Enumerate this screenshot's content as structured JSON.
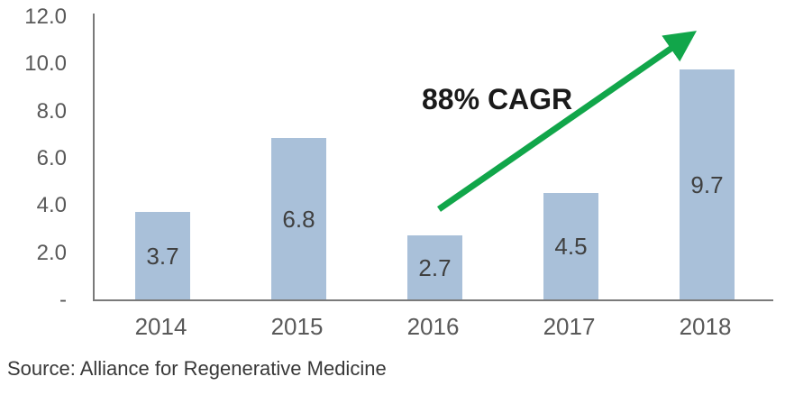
{
  "chart_data": {
    "type": "bar",
    "title": "",
    "xlabel": "",
    "ylabel": "",
    "categories": [
      "2014",
      "2015",
      "2016",
      "2017",
      "2018"
    ],
    "values": [
      3.7,
      6.8,
      2.7,
      4.5,
      9.7
    ],
    "bar_labels": [
      "3.7",
      "6.8",
      "2.7",
      "4.5",
      "9.7"
    ],
    "ylim": [
      0,
      12
    ],
    "yticks": [
      {
        "value": 12,
        "label": "12.0"
      },
      {
        "value": 10,
        "label": "10.0"
      },
      {
        "value": 8,
        "label": "8.0"
      },
      {
        "value": 6,
        "label": "6.0"
      },
      {
        "value": 4,
        "label": "4.0"
      },
      {
        "value": 2,
        "label": "2.0"
      },
      {
        "value": 0,
        "label": "-"
      }
    ],
    "grid": false,
    "legend_position": "none",
    "bar_color": "#a9c0d9",
    "bar_label_color": "#404040",
    "axis_color": "#7a7a7a",
    "tick_label_color": "#595959",
    "annotation": {
      "text": "88% CAGR",
      "arrow_color": "#11a64a"
    }
  },
  "footer": {
    "source_note": "Source: Alliance for Regenerative Medicine"
  }
}
